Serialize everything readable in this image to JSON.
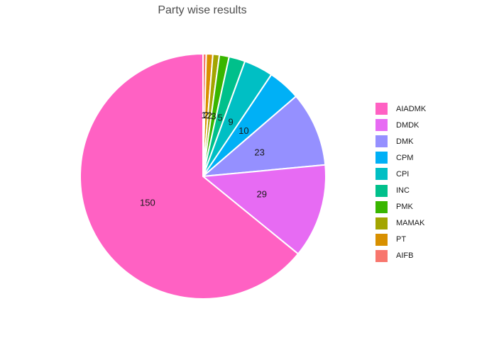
{
  "chart_data": {
    "type": "pie",
    "title": "Party wise results",
    "slices": [
      {
        "label": "AIADMK",
        "value": 150,
        "color": "#FF61C3",
        "value_label": "150"
      },
      {
        "label": "DMDK",
        "value": 29,
        "color": "#E76BF3",
        "value_label": "29"
      },
      {
        "label": "DMK",
        "value": 23,
        "color": "#9590FF",
        "value_label": "23"
      },
      {
        "label": "CPM",
        "value": 10,
        "color": "#00B0F6",
        "value_label": "10"
      },
      {
        "label": "CPI",
        "value": 9,
        "color": "#00BFC4",
        "value_label": "9"
      },
      {
        "label": "INC",
        "value": 5,
        "color": "#00C08B",
        "value_label": "5"
      },
      {
        "label": "PMK",
        "value": 3,
        "color": "#39B600",
        "value_label": "3"
      },
      {
        "label": "MAMAK",
        "value": 2,
        "color": "#A3A500",
        "value_label": "2"
      },
      {
        "label": "PT",
        "value": 2,
        "color": "#D89000",
        "value_label": "2"
      },
      {
        "label": "AIFB",
        "value": 1,
        "color": "#F8766D",
        "value_label": "1"
      }
    ],
    "legend_order": [
      "AIADMK",
      "DMDK",
      "DMK",
      "CPM",
      "CPI",
      "INC",
      "PMK",
      "MAMAK",
      "PT",
      "AIFB"
    ],
    "legend_position": "right",
    "start": "12 o'clock",
    "direction": "clockwise from AIFB"
  }
}
